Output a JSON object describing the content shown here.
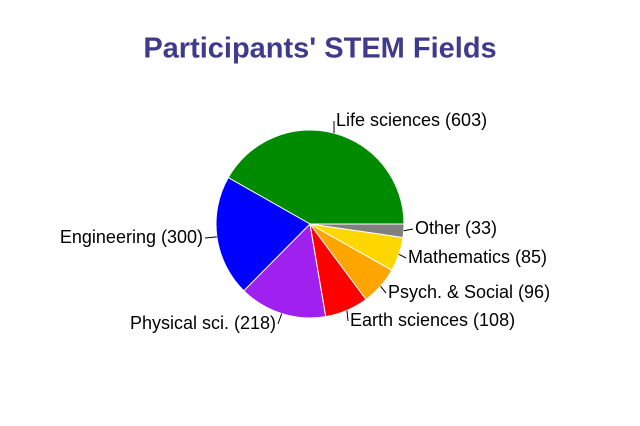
{
  "chart_data": {
    "type": "pie",
    "title": "Participants' STEM Fields",
    "values": [
      603,
      300,
      218,
      108,
      96,
      85,
      33
    ],
    "value_labels": [
      "Life sciences (603)",
      "Engineering (300)",
      "Physical sci. (218)",
      "Earth sciences (108)",
      "Psych. & Social (96)",
      "Mathematics (85)",
      "Other (33)"
    ],
    "colors": [
      "#008a00",
      "#0000ff",
      "#a020f0",
      "#ff0000",
      "#ffa500",
      "#ffd700",
      "#808080"
    ]
  }
}
